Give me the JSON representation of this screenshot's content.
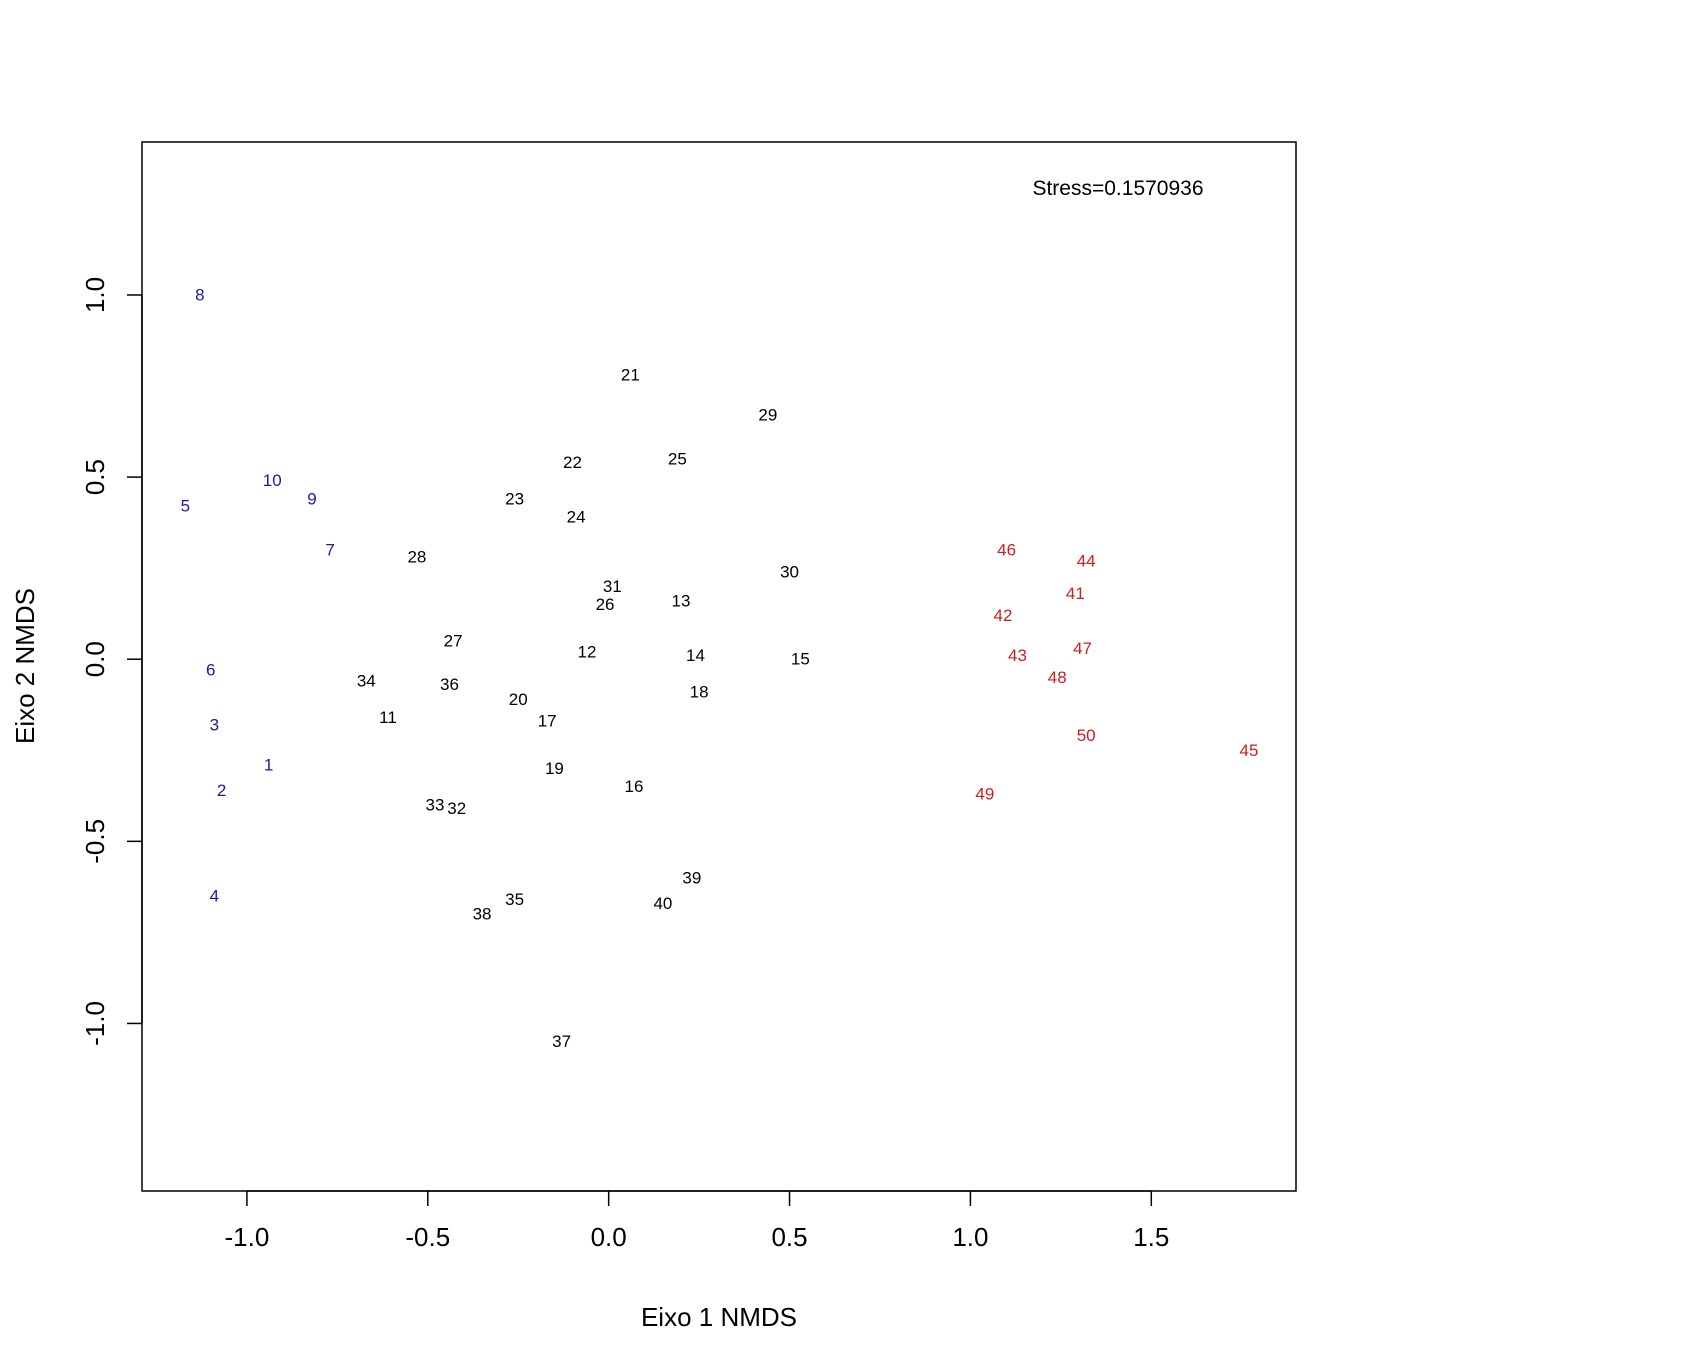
{
  "chart_data": {
    "type": "scatter",
    "title": "",
    "xlabel": "Eixo 1 NMDS",
    "ylabel": "Eixo 2 NMDS",
    "xlim": [
      -1.29,
      1.9
    ],
    "ylim": [
      -1.46,
      1.42
    ],
    "xticks": [
      -1.0,
      -0.5,
      0.0,
      0.5,
      1.0,
      1.5
    ],
    "xtick_labels": [
      "-1.0",
      "-0.5",
      "0.0",
      "0.5",
      "1.0",
      "1.5"
    ],
    "yticks": [
      -1.0,
      -0.5,
      0.0,
      0.5,
      1.0
    ],
    "ytick_labels": [
      "-1.0",
      "-0.5",
      "0.0",
      "0.5",
      "1.0"
    ],
    "grid": false,
    "annotation": "Stress=0.1570936",
    "colors": {
      "group_blue": "#1a1aa0",
      "group_black": "#000000",
      "group_red": "#cc1f1f"
    },
    "series": [
      {
        "color": "#1a1aa0",
        "points": [
          {
            "label": "1",
            "x": -0.94,
            "y": -0.29
          },
          {
            "label": "2",
            "x": -1.07,
            "y": -0.36
          },
          {
            "label": "3",
            "x": -1.09,
            "y": -0.18
          },
          {
            "label": "4",
            "x": -1.09,
            "y": -0.65
          },
          {
            "label": "5",
            "x": -1.17,
            "y": 0.42
          },
          {
            "label": "6",
            "x": -1.1,
            "y": -0.03
          },
          {
            "label": "7",
            "x": -0.77,
            "y": 0.3
          },
          {
            "label": "8",
            "x": -1.13,
            "y": 1.0
          },
          {
            "label": "9",
            "x": -0.82,
            "y": 0.44
          },
          {
            "label": "10",
            "x": -0.93,
            "y": 0.49
          }
        ]
      },
      {
        "color": "#000000",
        "points": [
          {
            "label": "11",
            "x": -0.61,
            "y": -0.16
          },
          {
            "label": "12",
            "x": -0.06,
            "y": 0.02
          },
          {
            "label": "13",
            "x": 0.2,
            "y": 0.16
          },
          {
            "label": "14",
            "x": 0.24,
            "y": 0.01
          },
          {
            "label": "15",
            "x": 0.53,
            "y": 0.0
          },
          {
            "label": "16",
            "x": 0.07,
            "y": -0.35
          },
          {
            "label": "17",
            "x": -0.17,
            "y": -0.17
          },
          {
            "label": "18",
            "x": 0.25,
            "y": -0.09
          },
          {
            "label": "19",
            "x": -0.15,
            "y": -0.3
          },
          {
            "label": "20",
            "x": -0.25,
            "y": -0.11
          },
          {
            "label": "21",
            "x": 0.06,
            "y": 0.78
          },
          {
            "label": "22",
            "x": -0.1,
            "y": 0.54
          },
          {
            "label": "23",
            "x": -0.26,
            "y": 0.44
          },
          {
            "label": "24",
            "x": -0.09,
            "y": 0.39
          },
          {
            "label": "25",
            "x": 0.19,
            "y": 0.55
          },
          {
            "label": "26",
            "x": -0.01,
            "y": 0.15
          },
          {
            "label": "27",
            "x": -0.43,
            "y": 0.05
          },
          {
            "label": "28",
            "x": -0.53,
            "y": 0.28
          },
          {
            "label": "29",
            "x": 0.44,
            "y": 0.67
          },
          {
            "label": "30",
            "x": 0.5,
            "y": 0.24
          },
          {
            "label": "31",
            "x": 0.01,
            "y": 0.2
          },
          {
            "label": "32",
            "x": -0.42,
            "y": -0.41
          },
          {
            "label": "33",
            "x": -0.48,
            "y": -0.4
          },
          {
            "label": "34",
            "x": -0.67,
            "y": -0.06
          },
          {
            "label": "35",
            "x": -0.26,
            "y": -0.66
          },
          {
            "label": "36",
            "x": -0.44,
            "y": -0.07
          },
          {
            "label": "37",
            "x": -0.13,
            "y": -1.05
          },
          {
            "label": "38",
            "x": -0.35,
            "y": -0.7
          },
          {
            "label": "39",
            "x": 0.23,
            "y": -0.6
          },
          {
            "label": "40",
            "x": 0.15,
            "y": -0.67
          }
        ]
      },
      {
        "color": "#cc1f1f",
        "points": [
          {
            "label": "41",
            "x": 1.29,
            "y": 0.18
          },
          {
            "label": "42",
            "x": 1.09,
            "y": 0.12
          },
          {
            "label": "43",
            "x": 1.13,
            "y": 0.01
          },
          {
            "label": "44",
            "x": 1.32,
            "y": 0.27
          },
          {
            "label": "45",
            "x": 1.77,
            "y": -0.25
          },
          {
            "label": "46",
            "x": 1.1,
            "y": 0.3
          },
          {
            "label": "47",
            "x": 1.31,
            "y": 0.03
          },
          {
            "label": "48",
            "x": 1.24,
            "y": -0.05
          },
          {
            "label": "49",
            "x": 1.04,
            "y": -0.37
          },
          {
            "label": "50",
            "x": 1.32,
            "y": -0.21
          }
        ]
      }
    ]
  }
}
